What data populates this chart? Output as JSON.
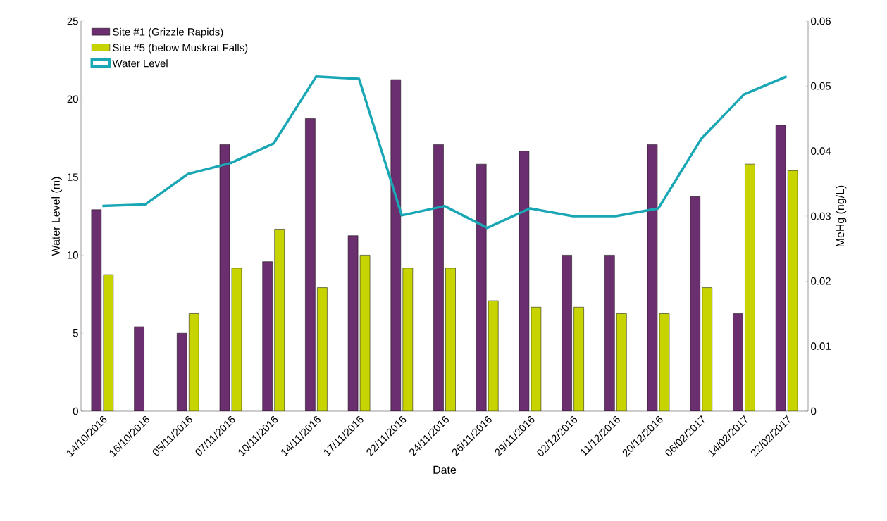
{
  "chart_data": {
    "type": "bar",
    "xlabel": "Date",
    "ylabel": "Water Level (m)",
    "y2label": "MeHg (ng/L)",
    "categories": [
      "14/10/2016",
      "16/10/2016",
      "05/11/2016",
      "07/11/2016",
      "10/11/2016",
      "14/11/2016",
      "17/11/2016",
      "22/11/2016",
      "24/11/2016",
      "26/11/2016",
      "29/11/2016",
      "02/12/2016",
      "11/12/2016",
      "20/12/2016",
      "06/02/2017",
      "14/02/2017",
      "22/02/2017"
    ],
    "series": [
      {
        "name": "Site #1 (Grizzle Rapids)",
        "color": "#6b2e6e",
        "axis": "y2",
        "values": [
          0.031,
          0.013,
          0.012,
          0.041,
          0.023,
          0.045,
          0.027,
          0.051,
          0.041,
          0.038,
          0.04,
          0.024,
          0.024,
          0.041,
          0.033,
          0.015,
          0.044
        ]
      },
      {
        "name": "Site #5 (below Muskrat Falls)",
        "color": "#c8d400",
        "axis": "y2",
        "values": [
          0.021,
          null,
          0.015,
          0.022,
          0.028,
          0.019,
          0.024,
          0.022,
          0.022,
          0.017,
          0.016,
          0.016,
          0.015,
          0.015,
          0.019,
          0.038,
          0.037
        ]
      },
      {
        "name": "Water Level",
        "type": "line",
        "color": "#1aa7b5",
        "axis": "y",
        "values": [
          13.15,
          13.25,
          15.2,
          15.9,
          17.15,
          21.45,
          21.3,
          12.55,
          13.15,
          11.75,
          13.0,
          12.5,
          12.5,
          13.0,
          17.45,
          20.3,
          21.45
        ]
      }
    ],
    "ylim": [
      0,
      25
    ],
    "yticks": [
      0,
      5,
      10,
      15,
      20,
      25
    ],
    "y2lim": [
      0,
      0.06
    ],
    "y2ticks": [
      0,
      0.01,
      0.02,
      0.03,
      0.04,
      0.05,
      0.06
    ],
    "legend": "top left"
  }
}
